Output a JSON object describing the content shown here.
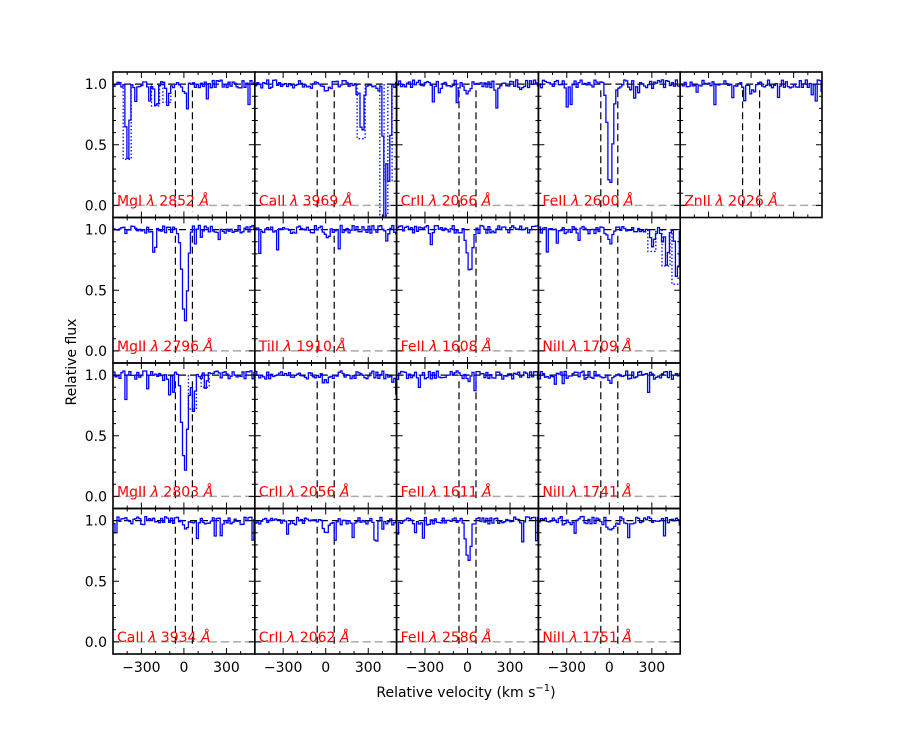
{
  "chart_data": {
    "type": "line",
    "xlabel": "Relative velocity (km s",
    "xlabel_sup": "−1",
    "xlabel_close": ")",
    "ylabel": "Relative flux",
    "xlim": [
      -500,
      500
    ],
    "ylim": [
      -0.1,
      1.1
    ],
    "x_ticks": [
      -300,
      0,
      300
    ],
    "x_tick_labels": [
      "−300",
      "0",
      "300"
    ],
    "y_ticks": [
      0.0,
      0.5,
      1.0
    ],
    "y_tick_labels": [
      "0.0",
      "0.5",
      "1.0"
    ],
    "velocity_limits": [
      -60,
      60
    ],
    "colors": {
      "spectrum": "#0000ff",
      "label": "#ff0000",
      "reference": "#000000",
      "zero_line": "#aaaaaa"
    },
    "panels": [
      {
        "ion": "MgI",
        "wavelength": "2852",
        "row": 0,
        "col": 0,
        "trough": 0.92,
        "center": 0,
        "blends": [
          [
            -400,
            0.38
          ],
          [
            -200,
            0.82
          ],
          [
            -120,
            0.85
          ]
        ]
      },
      {
        "ion": "CaII",
        "wavelength": "3969",
        "row": 0,
        "col": 1,
        "trough": 0.95,
        "center": 0,
        "blends": [
          [
            250,
            0.55
          ],
          [
            410,
            -0.08
          ],
          [
            440,
            0.2
          ]
        ]
      },
      {
        "ion": "CrII",
        "wavelength": "2066",
        "row": 0,
        "col": 2,
        "trough": 0.93,
        "center": 0,
        "blends": []
      },
      {
        "ion": "FeII",
        "wavelength": "2600",
        "row": 0,
        "col": 3,
        "trough": 0.2,
        "center": 0,
        "blends": []
      },
      {
        "ion": "ZnII",
        "wavelength": "2026",
        "row": 0,
        "col": 4,
        "trough": 0.92,
        "center": 0,
        "blends": []
      },
      {
        "ion": "MgII",
        "wavelength": "2796",
        "row": 1,
        "col": 0,
        "trough": 0.2,
        "center": 0,
        "blends": []
      },
      {
        "ion": "TiII",
        "wavelength": "1910",
        "row": 1,
        "col": 1,
        "trough": 0.93,
        "center": 0,
        "blends": []
      },
      {
        "ion": "FeII",
        "wavelength": "1608",
        "row": 1,
        "col": 2,
        "trough": 0.65,
        "center": 10,
        "blends": []
      },
      {
        "ion": "NiII",
        "wavelength": "1709",
        "row": 1,
        "col": 3,
        "trough": 0.93,
        "center": 0,
        "blends": [
          [
            300,
            0.82
          ],
          [
            400,
            0.7
          ],
          [
            470,
            0.55
          ]
        ]
      },
      {
        "ion": "MgII",
        "wavelength": "2803",
        "row": 2,
        "col": 0,
        "trough": 0.22,
        "center": 0,
        "blends": [
          [
            60,
            0.72
          ],
          [
            150,
            0.9
          ]
        ]
      },
      {
        "ion": "CrII",
        "wavelength": "2056",
        "row": 2,
        "col": 1,
        "trough": 0.93,
        "center": 0,
        "blends": []
      },
      {
        "ion": "FeII",
        "wavelength": "1611",
        "row": 2,
        "col": 2,
        "trough": 0.95,
        "center": 0,
        "blends": []
      },
      {
        "ion": "NiII",
        "wavelength": "1741",
        "row": 2,
        "col": 3,
        "trough": 0.93,
        "center": 0,
        "blends": []
      },
      {
        "ion": "CaII",
        "wavelength": "3934",
        "row": 3,
        "col": 0,
        "trough": 0.92,
        "center": 0,
        "blends": []
      },
      {
        "ion": "CrII",
        "wavelength": "2062",
        "row": 3,
        "col": 1,
        "trough": 0.92,
        "center": 0,
        "blends": []
      },
      {
        "ion": "FeII",
        "wavelength": "2586",
        "row": 3,
        "col": 2,
        "trough": 0.7,
        "center": 0,
        "blends": []
      },
      {
        "ion": "NiII",
        "wavelength": "1751",
        "row": 3,
        "col": 3,
        "trough": 0.93,
        "center": 0,
        "blends": []
      }
    ]
  }
}
